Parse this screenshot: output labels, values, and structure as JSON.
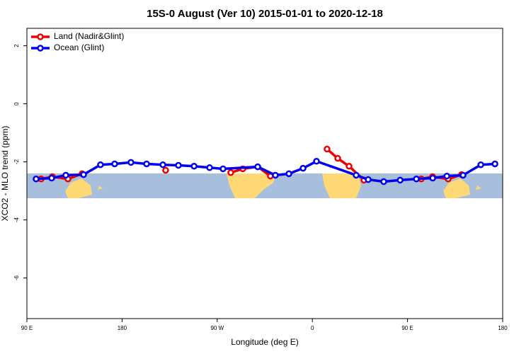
{
  "chart_data": {
    "type": "line",
    "title": "15S-0 August (Ver 10)   2015-01-01 to 2020-12-18",
    "x_label": "Longitude (deg E)",
    "y_label": "XCO2 - MLO trend (ppm)",
    "xlim": [
      90,
      540
    ],
    "ylim": [
      -7.4,
      2.6
    ],
    "xticks": [
      {
        "value": 90,
        "label": "90 E"
      },
      180,
      {
        "value": 270,
        "label": "90 W"
      },
      {
        "value": 360,
        "label": "0"
      },
      {
        "value": 450,
        "label": "90 E"
      },
      {
        "value": 540,
        "label": "180"
      }
    ],
    "yticks": [
      -6,
      -4,
      -2,
      0,
      2
    ],
    "legend": "top-left",
    "series": [
      {
        "name": "Land (Nadir&Glint)",
        "color": "#ee0000",
        "x": [
          103.4,
          114.1,
          128.8,
          142.2,
          180,
          221.2,
          250,
          282.8,
          294.2,
          308.3,
          320.3,
          350,
          373.9,
          384,
          394.7,
          408.8,
          440,
          463,
          473.7,
          488.4,
          501.1
        ],
        "values": [
          -2.59,
          -2.51,
          -2.59,
          -2.41,
          null,
          -2.29,
          null,
          -2.37,
          -2.24,
          -2.17,
          -2.49,
          null,
          -1.56,
          -1.88,
          -2.15,
          -2.63,
          null,
          -2.59,
          -2.51,
          -2.59,
          -2.44
        ]
      },
      {
        "name": "Ocean (Glint)",
        "color": "#0000ee",
        "x": [
          98.7,
          113.4,
          126.8,
          143.6,
          159.6,
          173,
          188.4,
          203.2,
          218.6,
          233.3,
          248.1,
          262.8,
          275.5,
          308.3,
          325,
          337.8,
          351.2,
          363.9,
          401.4,
          412.8,
          427.5,
          443,
          458.4,
          473.8,
          487.2,
          502.5,
          519.3,
          532.7
        ],
        "values": [
          -2.59,
          -2.56,
          -2.46,
          -2.44,
          -2.1,
          -2.07,
          -2.02,
          -2.07,
          -2.1,
          -2.12,
          -2.15,
          -2.2,
          -2.24,
          -2.17,
          -2.46,
          -2.41,
          -2.22,
          -1.98,
          -2.46,
          -2.61,
          -2.68,
          -2.63,
          -2.59,
          -2.56,
          -2.49,
          -2.46,
          -2.1,
          -2.07
        ]
      }
    ]
  }
}
